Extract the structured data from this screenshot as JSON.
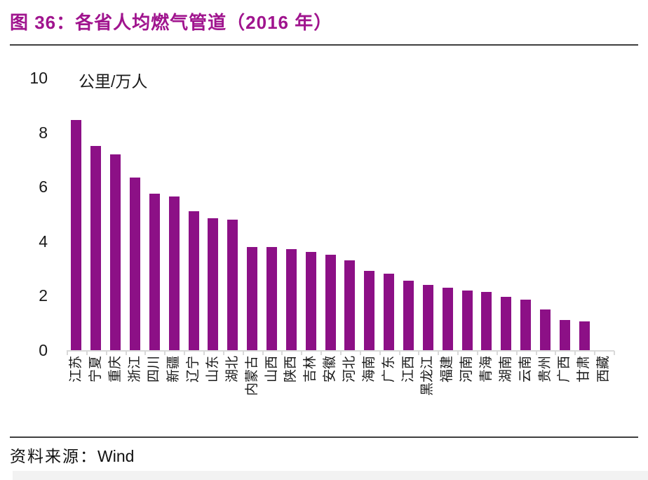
{
  "header": {
    "title": "图 36：各省人均燃气管道（2016 年）"
  },
  "colors": {
    "title": "#a0148e",
    "bar": "#8c1086",
    "axis": "#d9d9d9",
    "rule": "#3f3f3f"
  },
  "chart_data": {
    "type": "bar",
    "title": "各省人均燃气管道（2016 年）",
    "unit_label": "公里/万人",
    "xlabel": "",
    "ylabel": "公里/万人",
    "ylim": [
      0,
      10
    ],
    "yticks": [
      0,
      2,
      4,
      6,
      8,
      10
    ],
    "grid": false,
    "legend": "none",
    "bar_color": "#8c1086",
    "categories": [
      "江苏",
      "宁夏",
      "重庆",
      "浙江",
      "四川",
      "新疆",
      "辽宁",
      "山东",
      "湖北",
      "内蒙古",
      "山西",
      "陕西",
      "吉林",
      "安徽",
      "河北",
      "海南",
      "广东",
      "江西",
      "黑龙江",
      "福建",
      "河南",
      "青海",
      "湖南",
      "云南",
      "贵州",
      "广西",
      "甘肃",
      "西藏"
    ],
    "values": [
      8.45,
      7.5,
      7.2,
      6.35,
      5.75,
      5.65,
      5.1,
      4.85,
      4.8,
      3.8,
      3.8,
      3.7,
      3.6,
      3.5,
      3.3,
      2.9,
      2.8,
      2.55,
      2.4,
      2.3,
      2.2,
      2.15,
      1.95,
      1.85,
      1.5,
      1.1,
      1.05,
      0
    ]
  },
  "footer": {
    "source_label": "资料来源：",
    "source_value": "Wind"
  }
}
